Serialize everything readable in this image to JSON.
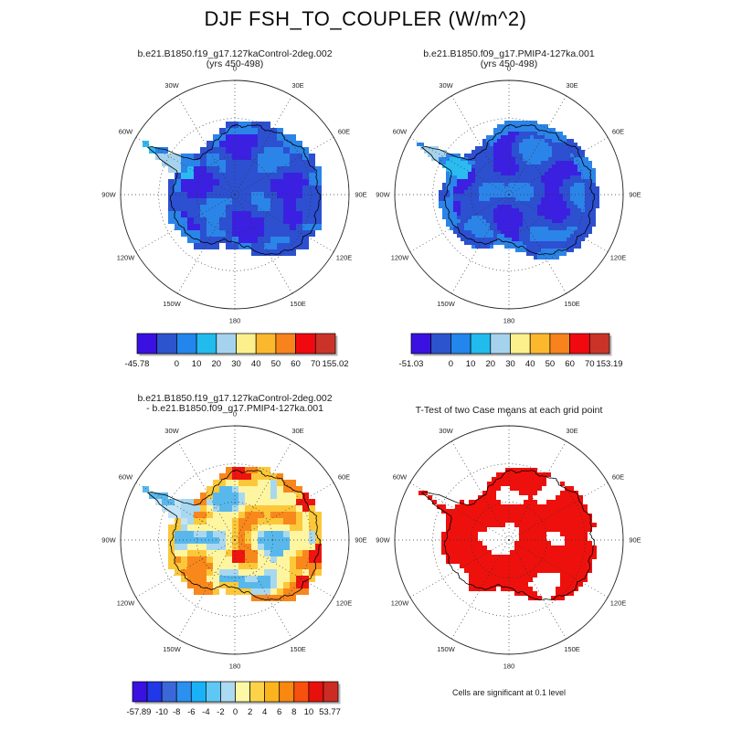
{
  "title": "DJF FSH_TO_COUPLER (W/m^2)",
  "panels": {
    "control": {
      "title": "b.e21.B1850.f19_g17.127kaControl-2deg.002",
      "subtitle": "(yrs 450-498)"
    },
    "pmip4": {
      "title": "b.e21.B1850.f09_g17.PMIP4-127ka.001",
      "subtitle": "(yrs 450-498)"
    },
    "diff": {
      "title_line1": "b.e21.B1850.f19_g17.127kaControl-2deg.002",
      "title_line2": "- b.e21.B1850.f09_g17.PMIP4-127ka.001"
    },
    "ttest": {
      "title": "T-Test of two Case means at each grid point",
      "note": "Cells are significant at 0.1 level"
    }
  },
  "map_labels": [
    "0",
    "30E",
    "60E",
    "90E",
    "120E",
    "150E",
    "180",
    "150W",
    "120W",
    "90W",
    "60W",
    "30W"
  ],
  "colorbars": {
    "control": {
      "colors": [
        "#3a11e0",
        "#2d54cf",
        "#2286ec",
        "#22bbee",
        "#a5d3ee",
        "#fbf08c",
        "#fcb82c",
        "#f8821c",
        "#f00a10",
        "#cc3328"
      ],
      "min": "-45.78",
      "ticks": [
        "0",
        "10",
        "20",
        "30",
        "40",
        "50",
        "60",
        "70"
      ],
      "max": "155.02"
    },
    "pmip4": {
      "colors": [
        "#3a11e0",
        "#2d54cf",
        "#2286ec",
        "#22bbee",
        "#a5d3ee",
        "#fbf08c",
        "#fcb82c",
        "#f8821c",
        "#f00a10",
        "#cc3328"
      ],
      "min": "-51.03",
      "ticks": [
        "0",
        "10",
        "20",
        "30",
        "40",
        "50",
        "60",
        "70"
      ],
      "max": "153.19"
    },
    "diff": {
      "colors": [
        "#3a11e0",
        "#2038e8",
        "#3a68d8",
        "#2b90f0",
        "#19b2f8",
        "#5fc8f2",
        "#abdaf2",
        "#fdf8a5",
        "#fcd348",
        "#fcb41e",
        "#f8880f",
        "#f8500f",
        "#e8100c",
        "#cc2c24"
      ],
      "min": "-57.89",
      "ticks": [
        "-10",
        "-8",
        "-6",
        "-4",
        "-2",
        "0",
        "2",
        "4",
        "6",
        "8",
        "10"
      ],
      "max": "53.77"
    }
  },
  "chart_data": [
    {
      "type": "map",
      "panel": "top-left",
      "title": "b.e21.B1850.f19_g17.127kaControl-2deg.002 (yrs 450-498)",
      "variable": "FSH_TO_COUPLER",
      "season": "DJF",
      "units": "W/m^2",
      "projection": "south polar stereographic of Antarctica, 0 meridian at top",
      "meridian_labels": [
        "0",
        "30E",
        "60E",
        "90E",
        "120E",
        "150E",
        "180",
        "150W",
        "120W",
        "90W",
        "60W",
        "30W"
      ],
      "contour_levels": [
        -10,
        0,
        10,
        20,
        30,
        40,
        50,
        60,
        70
      ],
      "data_min": -45.78,
      "data_max": 155.02,
      "legend_position": "below panel",
      "summary": "Continent mostly deep blue / royal blue (values below ~10 W/m^2); brighter blue fringe along coasts; cyan and pale blue cells on the Antarctic Peninsula."
    },
    {
      "type": "map",
      "panel": "top-right",
      "title": "b.e21.B1850.f09_g17.PMIP4-127ka.001 (yrs 450-498)",
      "variable": "FSH_TO_COUPLER",
      "season": "DJF",
      "units": "W/m^2",
      "projection": "south polar stereographic of Antarctica, 0 meridian at top",
      "meridian_labels": [
        "0",
        "30E",
        "60E",
        "90E",
        "120E",
        "150E",
        "180",
        "150W",
        "120W",
        "90W",
        "60W",
        "30W"
      ],
      "contour_levels": [
        -10,
        0,
        10,
        20,
        30,
        40,
        50,
        60,
        70
      ],
      "data_min": -51.03,
      "data_max": 153.19,
      "legend_position": "below panel",
      "summary": "Higher-resolution (f09) case; same blue pattern as control with finer grid cells, cyan along the Peninsula."
    },
    {
      "type": "map",
      "panel": "bottom-left",
      "title": "b.e21.B1850.f19_g17.127kaControl-2deg.002 - b.e21.B1850.f09_g17.PMIP4-127ka.001",
      "variable": "FSH_TO_COUPLER difference",
      "units": "W/m^2",
      "projection": "south polar stereographic of Antarctica, 0 meridian at top",
      "contour_levels": [
        -12,
        -10,
        -8,
        -6,
        -4,
        -2,
        0,
        2,
        4,
        6,
        8,
        10,
        12
      ],
      "data_min": -57.89,
      "data_max": 53.77,
      "legend_position": "below panel",
      "summary": "Difference map: interior mostly pale yellow (0 to 2), scattered light-blue negative patches, gold/orange positive patches concentrated near coasts, a few red spots (>12) near the 0E, 60E, 90E and 120E coasts and just south of the pole."
    },
    {
      "type": "map",
      "panel": "bottom-right",
      "title": "T-Test of two Case means at each grid point",
      "caption": "Cells are significant at 0.1 level",
      "projection": "south polar stereographic of Antarctica, 0 meridian at top",
      "summary": "Continent filled solid red where the two case means differ significantly at the 0.1 level; scattered white holes mark non-significant cells, especially near the pole."
    }
  ]
}
